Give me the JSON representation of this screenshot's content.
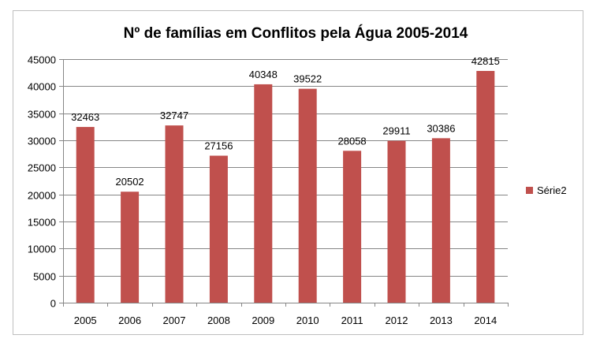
{
  "chart_data": {
    "type": "bar",
    "title": "Nº de famílias em Conflitos pela Água 2005-2014",
    "xlabel": "",
    "ylabel": "",
    "categories": [
      "2005",
      "2006",
      "2007",
      "2008",
      "2009",
      "2010",
      "2011",
      "2012",
      "2013",
      "2014"
    ],
    "series": [
      {
        "name": "Série2",
        "color": "#c0504d",
        "values": [
          32463,
          20502,
          32747,
          27156,
          40348,
          39522,
          28058,
          29911,
          30386,
          42815
        ]
      }
    ],
    "ylim": [
      0,
      45000
    ],
    "yticks": [
      0,
      5000,
      10000,
      15000,
      20000,
      25000,
      30000,
      35000,
      40000,
      45000
    ],
    "data_labels": true,
    "grid": true,
    "legend_position": "right"
  }
}
